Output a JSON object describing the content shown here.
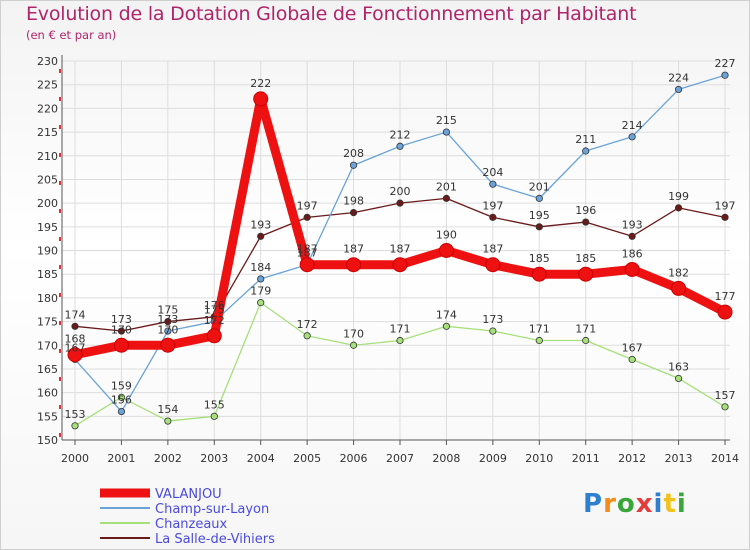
{
  "title": "Evolution de la Dotation Globale de Fonctionnement par Habitant",
  "subtitle": "(en € et par an)",
  "logo": [
    "P",
    "r",
    "o",
    "x",
    "i",
    "t",
    "i"
  ],
  "chart_data": {
    "type": "line",
    "title": "Evolution de la Dotation Globale de Fonctionnement par Habitant",
    "ylabel": "(en € et par an)",
    "xlabel": "",
    "x": [
      "2000",
      "2001",
      "2002",
      "2003",
      "2004",
      "2005",
      "2006",
      "2007",
      "2008",
      "2009",
      "2010",
      "2011",
      "2012",
      "2013",
      "2014"
    ],
    "ylim": [
      150,
      230
    ],
    "yticks": [
      150,
      155,
      160,
      165,
      170,
      175,
      180,
      185,
      190,
      195,
      200,
      205,
      210,
      215,
      220,
      225,
      230
    ],
    "grid": true,
    "legend_position": "bottom-left",
    "series": [
      {
        "name": "La Salle-de-Vihiers",
        "color": "#6b1a1a",
        "values": [
          174,
          173,
          175,
          176,
          193,
          197,
          198,
          200,
          201,
          197,
          195,
          196,
          193,
          199,
          197
        ]
      },
      {
        "name": "Chanzeaux",
        "color": "#a6e07a",
        "values": [
          153,
          159,
          154,
          155,
          179,
          172,
          170,
          171,
          174,
          173,
          171,
          171,
          167,
          163,
          157
        ]
      },
      {
        "name": "Champ-sur-Layon",
        "color": "#6aa3d8",
        "values": [
          167,
          156,
          173,
          175,
          184,
          187,
          208,
          212,
          215,
          204,
          201,
          211,
          214,
          224,
          227
        ]
      },
      {
        "name": "VALANJOU",
        "color": "#ee1111",
        "values": [
          168,
          170,
          170,
          172,
          222,
          187,
          187,
          187,
          190,
          187,
          185,
          185,
          186,
          182,
          177
        ]
      }
    ],
    "legend": [
      "VALANJOU",
      "Champ-sur-Layon",
      "Chanzeaux",
      "La Salle-de-Vihiers"
    ]
  }
}
